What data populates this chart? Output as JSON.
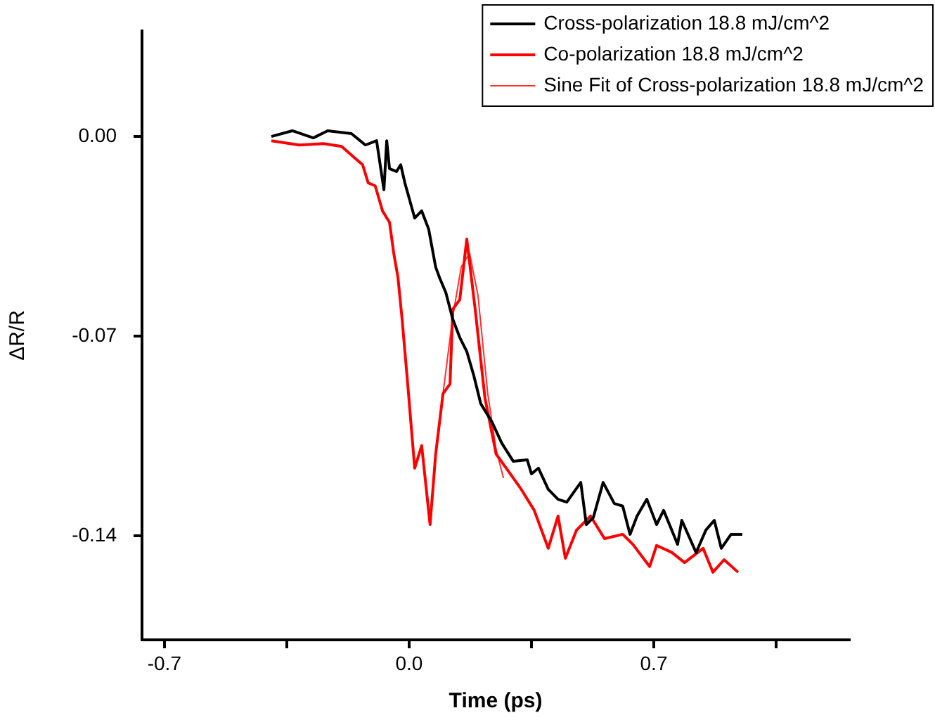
{
  "chart_data": {
    "type": "line",
    "xlabel": "Time (ps)",
    "ylabel": "ΔR/R",
    "xlim": [
      -0.764,
      1.259
    ],
    "ylim": [
      -0.1765,
      0.037
    ],
    "xticks": [
      -0.7,
      {
        "value": -0.35,
        "label": null
      },
      {
        "value": 0,
        "label": "0.0"
      },
      {
        "value": 0.35,
        "label": null
      },
      0.7,
      {
        "value": 1.05,
        "label": null
      }
    ],
    "yticks": [
      {
        "value": 0,
        "label": "0.00"
      },
      -0.07,
      -0.14
    ],
    "grid": false,
    "legend": "top right",
    "marker": "none",
    "line_style": "solid",
    "series": [
      {
        "name": "Cross-polarization 18.8 mJ/cm^2",
        "color": "#000000",
        "x": [
          -0.394,
          -0.334,
          -0.274,
          -0.233,
          -0.165,
          -0.125,
          -0.093,
          -0.072,
          -0.064,
          -0.056,
          -0.036,
          -0.024,
          -0.012,
          0.016,
          0.036,
          0.056,
          0.076,
          0.088,
          0.105,
          0.125,
          0.145,
          0.165,
          0.185,
          0.205,
          0.237,
          0.265,
          0.298,
          0.338,
          0.35,
          0.37,
          0.398,
          0.426,
          0.451,
          0.491,
          0.507,
          0.527,
          0.555,
          0.587,
          0.611,
          0.632,
          0.652,
          0.68,
          0.708,
          0.728,
          0.768,
          0.78,
          0.821,
          0.849,
          0.873,
          0.893,
          0.921,
          0.953
        ],
        "values": [
          0,
          0.002,
          -0.0005,
          0.002,
          0.001,
          -0.003,
          -0.0015,
          -0.0187,
          -0.0015,
          -0.0113,
          -0.0123,
          -0.0099,
          -0.0163,
          -0.0286,
          -0.0261,
          -0.0325,
          -0.0458,
          -0.0498,
          -0.0547,
          -0.0641,
          -0.0705,
          -0.0754,
          -0.0838,
          -0.0937,
          -0.1001,
          -0.1075,
          -0.1139,
          -0.1134,
          -0.1183,
          -0.1163,
          -0.1237,
          -0.1272,
          -0.1282,
          -0.1213,
          -0.1361,
          -0.1336,
          -0.1213,
          -0.1287,
          -0.1296,
          -0.1395,
          -0.1331,
          -0.1272,
          -0.1361,
          -0.1311,
          -0.143,
          -0.1346,
          -0.1459,
          -0.138,
          -0.1346,
          -0.1444,
          -0.1395,
          -0.1395
        ]
      },
      {
        "name": "Co-polarization 18.8 mJ/cm^2",
        "color": "#ff0000",
        "x": [
          -0.394,
          -0.314,
          -0.245,
          -0.193,
          -0.157,
          -0.133,
          -0.117,
          -0.097,
          -0.076,
          -0.056,
          -0.044,
          -0.032,
          -0.02,
          -0.004,
          0.016,
          0.036,
          0.06,
          0.076,
          0.097,
          0.117,
          0.125,
          0.145,
          0.165,
          0.189,
          0.217,
          0.249,
          0.278,
          0.318,
          0.358,
          0.398,
          0.426,
          0.447,
          0.479,
          0.519,
          0.559,
          0.611,
          0.64,
          0.688,
          0.708,
          0.752,
          0.788,
          0.841,
          0.869,
          0.901,
          0.941
        ],
        "values": [
          -0.0015,
          -0.003,
          -0.0025,
          -0.0035,
          -0.0074,
          -0.0099,
          -0.0163,
          -0.0173,
          -0.0261,
          -0.0301,
          -0.0409,
          -0.0493,
          -0.0641,
          -0.0868,
          -0.1163,
          -0.1084,
          -0.1361,
          -0.1114,
          -0.0902,
          -0.0868,
          -0.0606,
          -0.0572,
          -0.036,
          -0.0606,
          -0.0917,
          -0.1114,
          -0.1163,
          -0.1232,
          -0.1311,
          -0.1444,
          -0.1331,
          -0.1479,
          -0.138,
          -0.1331,
          -0.141,
          -0.1395,
          -0.143,
          -0.1508,
          -0.1434,
          -0.1459,
          -0.1494,
          -0.1444,
          -0.1528,
          -0.1484,
          -0.1528
        ]
      },
      {
        "name": "Sine Fit of Cross-polarization 18.8 mJ/cm^2",
        "color": "#ff3030",
        "x": [
          0.097,
          0.125,
          0.149,
          0.173,
          0.197,
          0.225,
          0.249,
          0.27
        ],
        "values": [
          -0.0902,
          -0.0631,
          -0.0458,
          -0.0409,
          -0.0557,
          -0.0902,
          -0.1099,
          -0.1198
        ]
      }
    ]
  }
}
